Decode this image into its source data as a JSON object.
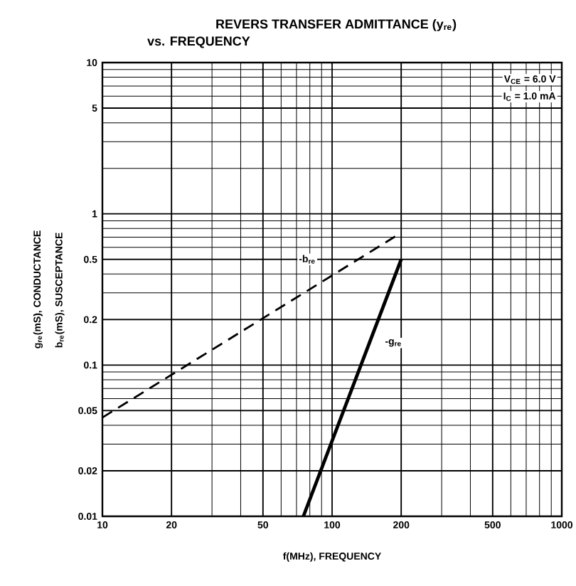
{
  "chart_data": {
    "type": "line",
    "title": "REVERS TRANSFER ADMITTANCE (y$_{re}$)",
    "subtitle": "vs. FREQUENCY",
    "xlabel": "f(MHz), FREQUENCY",
    "ylabel": "g$_{re}$(mS), CONDUCTANCE",
    "log": "xy",
    "grid": true,
    "xlim": [
      10,
      1000
    ],
    "ylim": [
      0.01,
      10
    ],
    "xticks": [
      10,
      20,
      50,
      100,
      200,
      500,
      1000
    ],
    "yticks": [
      0.01,
      0.02,
      0.05,
      0.1,
      0.2,
      0.5,
      1,
      5,
      10
    ],
    "series": [
      {
        "color": "#000000",
        "line_style": "dashed",
        "x": [
          10,
          200
        ],
        "values": [
          0.045,
          0.75
        ]
      },
      {
        "color": "#000000",
        "line_style": "solid",
        "x": [
          75,
          200
        ],
        "values": [
          0.01,
          0.5
        ]
      }
    ],
    "annotations": [
      "b$_{re}$(mS), SUSCEPTANCE",
      "V$_{CE}$ = 6.0 V",
      "I$_{C}$ = 1.0 mA",
      {
        "text": "-b$_{re}$",
        "x": 78,
        "y": 0.5
      },
      {
        "text": "-g$_{re}$",
        "x": 185,
        "y": 0.14
      }
    ]
  }
}
